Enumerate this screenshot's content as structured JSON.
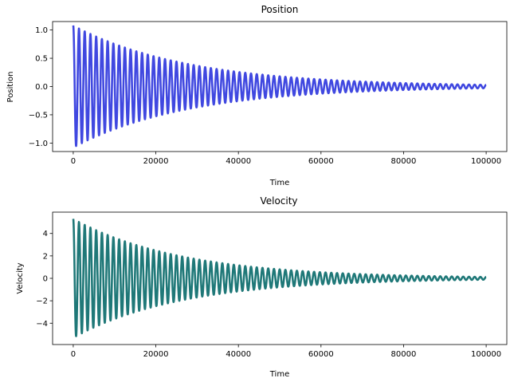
{
  "chart_data": [
    {
      "type": "line",
      "title": "Position",
      "xlabel": "Time",
      "ylabel": "Position",
      "xlim": [
        -5000,
        105000
      ],
      "ylim": [
        -1.15,
        1.15
      ],
      "xticks": [
        0,
        20000,
        40000,
        60000,
        80000,
        100000
      ],
      "xtick_labels": [
        "0",
        "20000",
        "40000",
        "60000",
        "80000",
        "100000"
      ],
      "yticks": [
        -1.0,
        -0.5,
        0.0,
        0.5,
        1.0
      ],
      "ytick_labels": [
        "−1.0",
        "−0.5",
        "0.0",
        "0.5",
        "1.0"
      ],
      "grid": false,
      "series": [
        {
          "color": "#4048e0",
          "signal": "damped_oscillation",
          "x_start": 0,
          "x_end": 100000,
          "initial_amplitude": 1.08,
          "final_amplitude": 0.03,
          "cycles": 72
        }
      ]
    },
    {
      "type": "line",
      "title": "Velocity",
      "xlabel": "Time",
      "ylabel": "Velocity",
      "xlim": [
        -5000,
        105000
      ],
      "ylim": [
        -5.9,
        5.9
      ],
      "xticks": [
        0,
        20000,
        40000,
        60000,
        80000,
        100000
      ],
      "xtick_labels": [
        "0",
        "20000",
        "40000",
        "60000",
        "80000",
        "100000"
      ],
      "yticks": [
        -4,
        -2,
        0,
        2,
        4
      ],
      "ytick_labels": [
        "−4",
        "−2",
        "0",
        "2",
        "4"
      ],
      "grid": false,
      "series": [
        {
          "color": "#1f7878",
          "signal": "damped_oscillation",
          "x_start": 0,
          "x_end": 100000,
          "initial_amplitude": 5.3,
          "final_amplitude": 0.12,
          "cycles": 72
        }
      ]
    }
  ]
}
